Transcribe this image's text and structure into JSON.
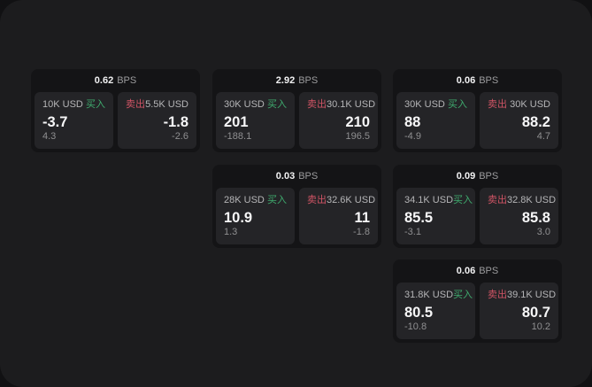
{
  "labels": {
    "bps_unit": "BPS",
    "buy": "买入",
    "sell": "卖出"
  },
  "colors": {
    "surface": "#1c1c1e",
    "card_background": "#141416",
    "panel_background": "#242427",
    "buy_green": "#3fab6e",
    "sell_red": "#d05465"
  },
  "cards": [
    {
      "bps": "0.62",
      "buy": {
        "amount": "10K USD",
        "main": "-3.7",
        "sub": "4.3"
      },
      "sell": {
        "amount": "5.5K USD",
        "main": "-1.8",
        "sub": "-2.6"
      }
    },
    {
      "bps": "2.92",
      "buy": {
        "amount": "30K USD",
        "main": "201",
        "sub": "-188.1"
      },
      "sell": {
        "amount": "30.1K USD",
        "main": "210",
        "sub": "196.5"
      }
    },
    {
      "bps": "0.06",
      "buy": {
        "amount": "30K USD",
        "main": "88",
        "sub": "-4.9"
      },
      "sell": {
        "amount": "30K USD",
        "main": "88.2",
        "sub": "4.7"
      }
    },
    {
      "bps": "0.03",
      "buy": {
        "amount": "28K USD",
        "main": "10.9",
        "sub": "1.3"
      },
      "sell": {
        "amount": "32.6K USD",
        "main": "11",
        "sub": "-1.8"
      }
    },
    {
      "bps": "0.09",
      "buy": {
        "amount": "34.1K USD",
        "main": "85.5",
        "sub": "-3.1"
      },
      "sell": {
        "amount": "32.8K USD",
        "main": "85.8",
        "sub": "3.0"
      }
    },
    {
      "bps": "0.06",
      "buy": {
        "amount": "31.8K USD",
        "main": "80.5",
        "sub": "-10.8"
      },
      "sell": {
        "amount": "39.1K USD",
        "main": "80.7",
        "sub": "10.2"
      }
    }
  ]
}
